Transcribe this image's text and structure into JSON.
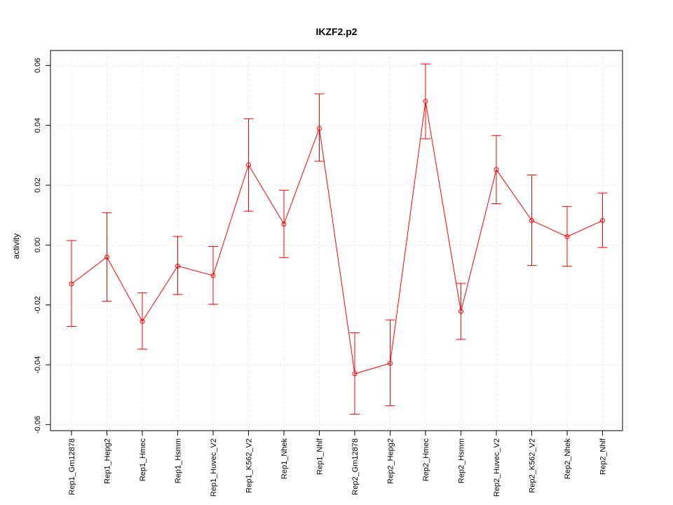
{
  "chart_data": {
    "type": "line",
    "title": "IKZF2.p2",
    "xlabel": "",
    "ylabel": "activity",
    "ylim": [
      -0.062,
      0.065
    ],
    "yticks": [
      -0.06,
      -0.04,
      -0.02,
      0.0,
      0.02,
      0.04,
      0.06
    ],
    "ytick_labels": [
      "-0.06",
      "-0.04",
      "-0.02",
      "0.00",
      "0.02",
      "0.04",
      "0.06"
    ],
    "grid": true,
    "color": "#ff0000",
    "categories": [
      "Rep1_Gm12878",
      "Rep1_Hepg2",
      "Rep1_Hmec",
      "Rep1_Hsmm",
      "Rep1_Huvec_V2",
      "Rep1_K562_V2",
      "Rep1_Nhek",
      "Rep1_Nhlf",
      "Rep2_Gm12878",
      "Rep2_Hepg2",
      "Rep2_Hmec",
      "Rep2_Hsmm",
      "Rep2_Huvec_V2",
      "Rep2_K562_V2",
      "Rep2_Nhek",
      "Rep2_Nhlf"
    ],
    "values": [
      -0.013,
      -0.004,
      -0.0255,
      -0.007,
      -0.0102,
      0.0268,
      0.007,
      0.039,
      -0.043,
      -0.0395,
      0.048,
      -0.0222,
      0.0252,
      0.0082,
      0.0028,
      0.0082
    ],
    "lower": [
      -0.0272,
      -0.0188,
      -0.0348,
      -0.0165,
      -0.0198,
      0.0113,
      -0.0042,
      0.028,
      -0.0565,
      -0.0537,
      0.0355,
      -0.0315,
      0.0138,
      -0.0068,
      -0.0071,
      -0.0008
    ],
    "upper": [
      0.0015,
      0.0108,
      -0.016,
      0.0029,
      -0.0005,
      0.0422,
      0.0183,
      0.0505,
      -0.0293,
      -0.025,
      0.0605,
      -0.0128,
      0.0366,
      0.0234,
      0.0129,
      0.0174
    ]
  }
}
